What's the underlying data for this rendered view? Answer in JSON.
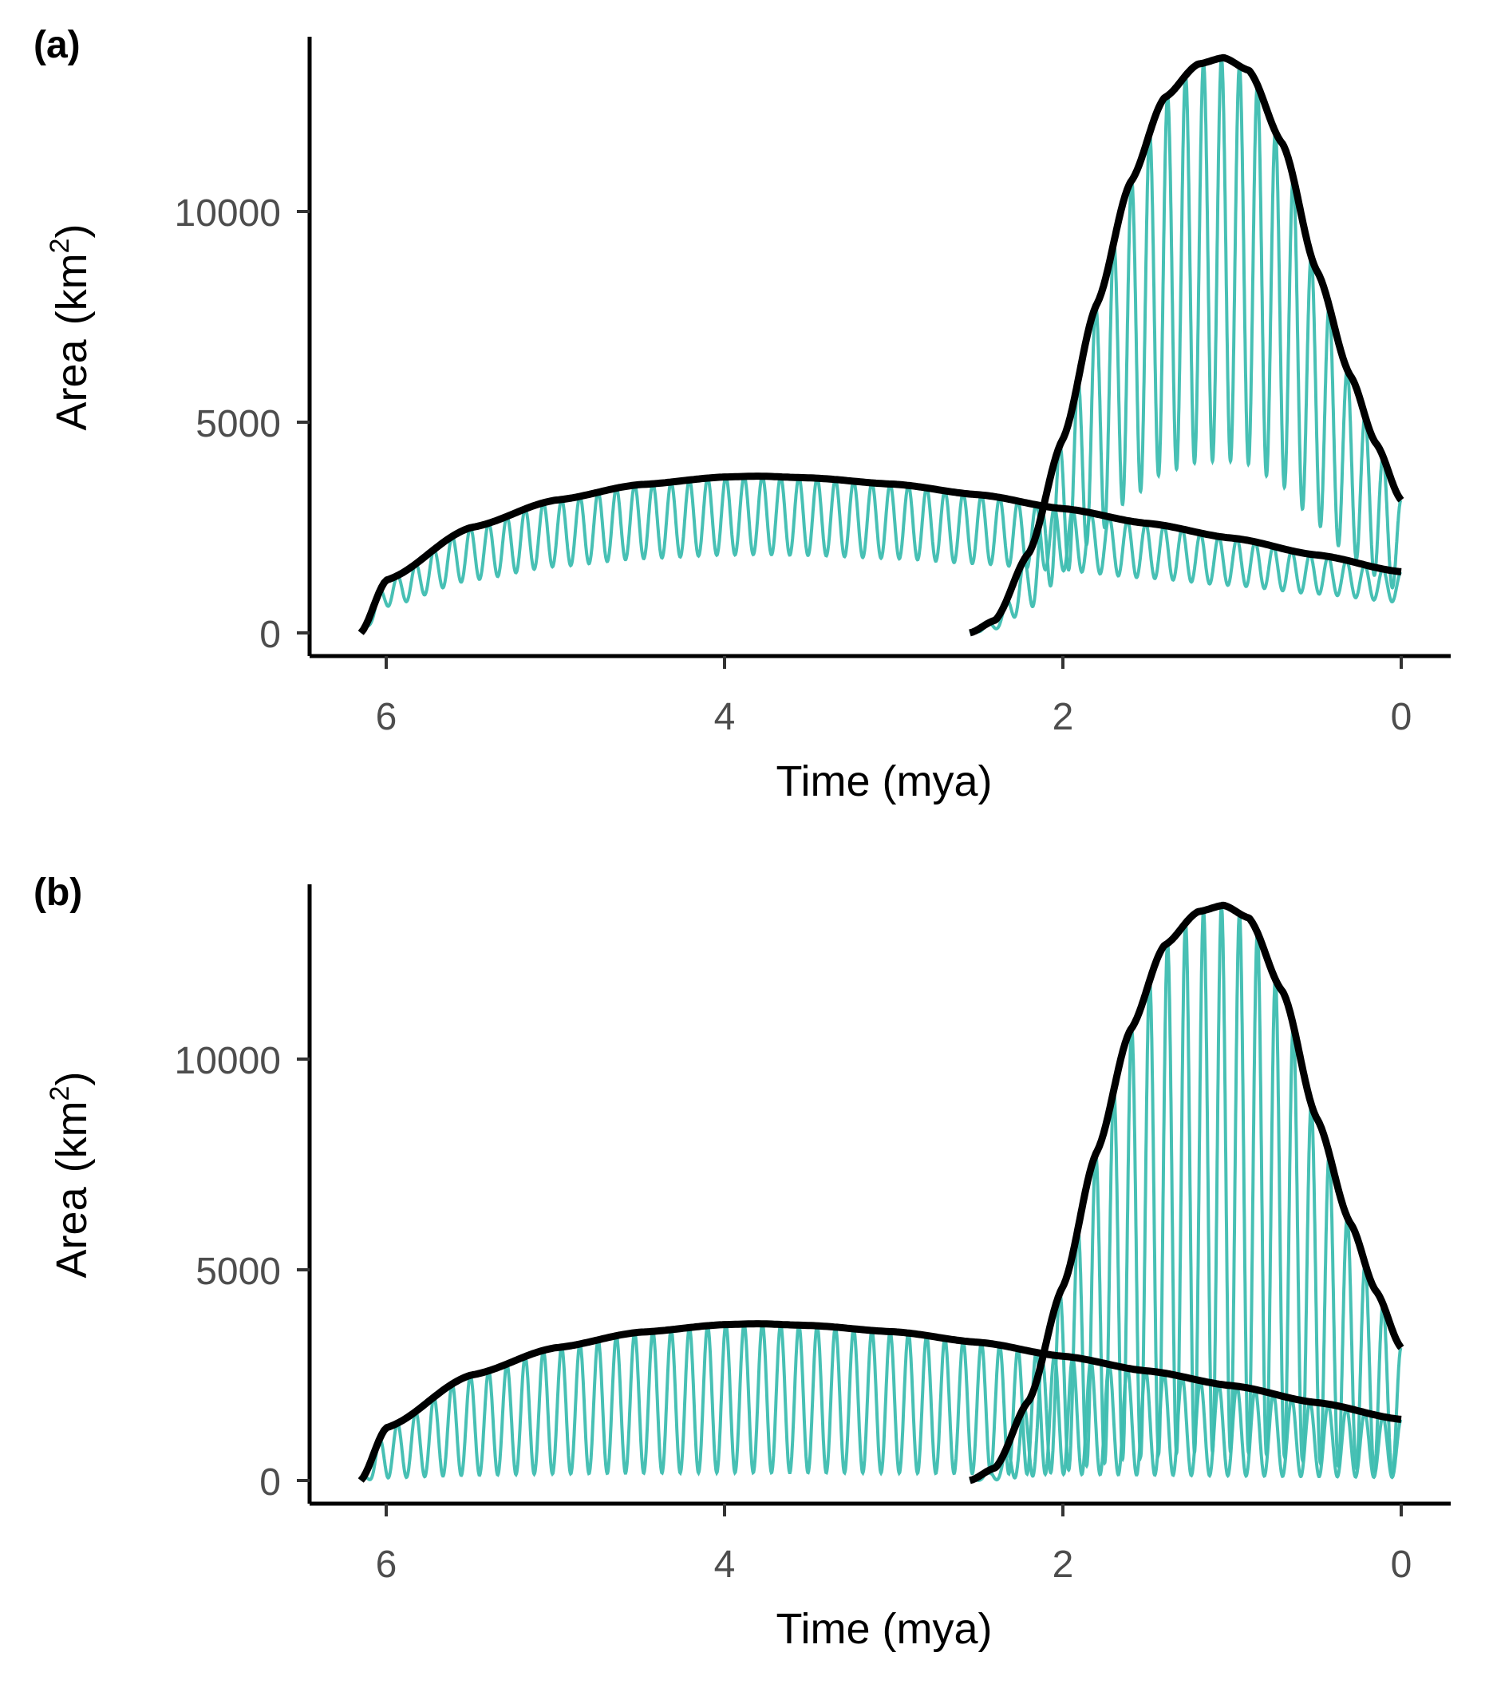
{
  "colors": {
    "oscillation": "#3dbdb0",
    "envelope": "#000000"
  },
  "chart_data": [
    {
      "type": "line",
      "panel_label": "(a)",
      "xlabel": "Time (mya)",
      "ylabel_main": "Area",
      "ylabel_unit": "(km",
      "ylabel_sup": "2",
      "ylabel_close": ")",
      "x_reversed": true,
      "xlim": [
        6.35,
        -0.3
      ],
      "ylim": [
        -600,
        14000
      ],
      "x_ticks": [
        6,
        4,
        2,
        0
      ],
      "x_tick_labels": [
        "6",
        "4",
        "2",
        "0"
      ],
      "y_ticks": [
        0,
        5000,
        10000
      ],
      "y_tick_labels": [
        "0",
        "5000",
        "10000"
      ],
      "grid": false,
      "legend": "none",
      "series": [
        {
          "role": "envelope",
          "color": "#000000",
          "x": [
            6.15,
            6.0,
            5.5,
            5.0,
            4.5,
            4.0,
            3.8,
            3.5,
            3.0,
            2.5,
            2.0,
            1.5,
            1.0,
            0.5,
            0.0
          ],
          "y": [
            0,
            1250,
            2500,
            3150,
            3520,
            3700,
            3720,
            3680,
            3530,
            3280,
            2950,
            2600,
            2250,
            1850,
            1450
          ]
        },
        {
          "role": "envelope",
          "color": "#000000",
          "x": [
            2.55,
            2.4,
            2.2,
            2.0,
            1.8,
            1.6,
            1.4,
            1.2,
            1.05,
            0.9,
            0.7,
            0.5,
            0.3,
            0.15,
            0.0
          ],
          "y": [
            0,
            300,
            1900,
            4600,
            7800,
            10700,
            12700,
            13500,
            13650,
            13350,
            11600,
            8600,
            6100,
            4500,
            3150
          ]
        },
        {
          "role": "oscillation",
          "color": "#3dbdb0",
          "start": 6.15,
          "end": 0.0,
          "cycles": 57,
          "trough_fraction": 0.5
        },
        {
          "role": "oscillation",
          "color": "#3dbdb0",
          "start": 2.55,
          "end": 0.0,
          "cycles": 24,
          "trough_fraction": 0.7
        }
      ]
    },
    {
      "type": "line",
      "panel_label": "(b)",
      "xlabel": "Time (mya)",
      "ylabel_main": "Area",
      "ylabel_unit": "(km",
      "ylabel_sup": "2",
      "ylabel_close": ")",
      "x_reversed": true,
      "xlim": [
        6.35,
        -0.3
      ],
      "ylim": [
        -600,
        14000
      ],
      "x_ticks": [
        6,
        4,
        2,
        0
      ],
      "x_tick_labels": [
        "6",
        "4",
        "2",
        "0"
      ],
      "y_ticks": [
        0,
        5000,
        10000
      ],
      "y_tick_labels": [
        "0",
        "5000",
        "10000"
      ],
      "grid": false,
      "legend": "none",
      "series": [
        {
          "role": "envelope",
          "color": "#000000",
          "x": [
            6.15,
            6.0,
            5.5,
            5.0,
            4.5,
            4.0,
            3.8,
            3.5,
            3.0,
            2.5,
            2.0,
            1.5,
            1.0,
            0.5,
            0.0
          ],
          "y": [
            0,
            1250,
            2500,
            3150,
            3520,
            3700,
            3720,
            3680,
            3530,
            3280,
            2950,
            2600,
            2250,
            1850,
            1450
          ]
        },
        {
          "role": "envelope",
          "color": "#000000",
          "x": [
            2.55,
            2.4,
            2.2,
            2.0,
            1.8,
            1.6,
            1.4,
            1.2,
            1.05,
            0.9,
            0.7,
            0.5,
            0.3,
            0.15,
            0.0
          ],
          "y": [
            0,
            300,
            1900,
            4600,
            7800,
            10700,
            12700,
            13500,
            13650,
            13350,
            11600,
            8600,
            6100,
            4500,
            3150
          ]
        },
        {
          "role": "oscillation",
          "color": "#3dbdb0",
          "start": 6.15,
          "end": 0.0,
          "cycles": 57,
          "trough_fraction": 0.95
        },
        {
          "role": "oscillation",
          "color": "#3dbdb0",
          "start": 2.55,
          "end": 0.0,
          "cycles": 24,
          "trough_fraction": 0.95
        }
      ]
    }
  ]
}
